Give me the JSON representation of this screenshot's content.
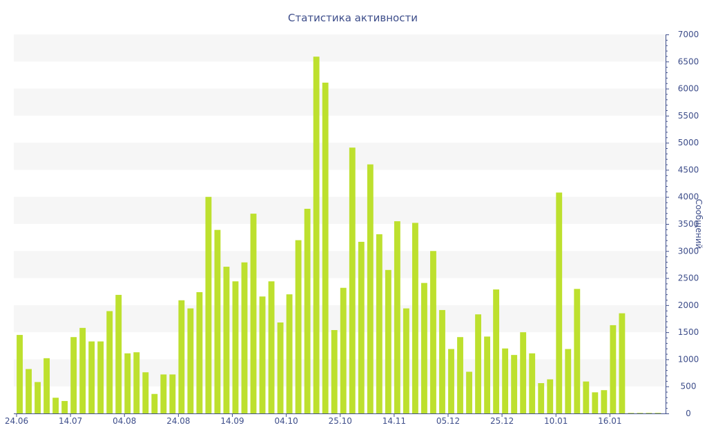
{
  "chart_data": {
    "type": "bar",
    "title": "Статистика активности",
    "ylabel": "Сообщений",
    "xlabel": "",
    "ylim": [
      0,
      7000
    ],
    "yticks": [
      0,
      500,
      1000,
      1500,
      2000,
      2500,
      3000,
      3500,
      4000,
      4500,
      5000,
      5500,
      6000,
      6500,
      7000
    ],
    "y_axis_side": "right",
    "grid": "alternating horizontal bands",
    "legend": "none",
    "colors": {
      "bar": "#bde02e",
      "band": "#f6f6f6",
      "text": "#3d4d8a"
    },
    "x_tick_labels": [
      "24.06",
      "14.07",
      "04.08",
      "24.08",
      "14.09",
      "04.10",
      "25.10",
      "14.11",
      "05.12",
      "25.12",
      "10.01",
      "16.01"
    ],
    "x_tick_positions": [
      0,
      6,
      12,
      18,
      24,
      30,
      36,
      42,
      48,
      54,
      60,
      66
    ],
    "values": [
      1450,
      820,
      580,
      1020,
      290,
      230,
      1410,
      1580,
      1330,
      1330,
      1890,
      2190,
      1110,
      1130,
      760,
      360,
      720,
      720,
      2090,
      1940,
      2240,
      4000,
      3390,
      2710,
      2440,
      2790,
      3690,
      2160,
      2440,
      1680,
      2200,
      3200,
      3780,
      6590,
      6110,
      1540,
      2320,
      4910,
      3170,
      4600,
      3310,
      2650,
      3550,
      1940,
      3520,
      2410,
      3000,
      1910,
      1190,
      1410,
      770,
      1830,
      1420,
      2290,
      1200,
      1080,
      1500,
      1110,
      560,
      630,
      4080,
      1190,
      2300,
      590,
      390,
      430,
      1630,
      1850,
      10,
      10,
      10,
      10
    ]
  }
}
